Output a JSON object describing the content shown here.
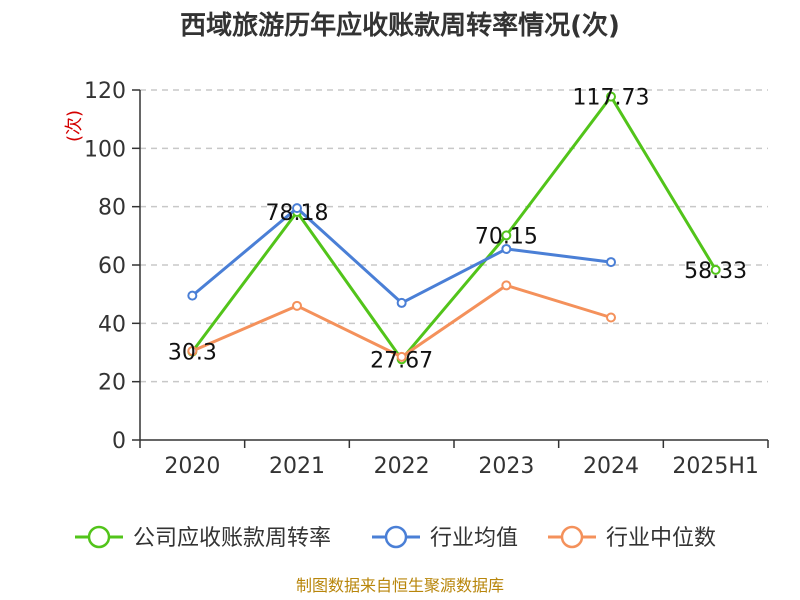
{
  "chart_data": {
    "type": "line",
    "title": "西域旅游历年应收账款周转率情况(次)",
    "ylabel": "(次)",
    "categories": [
      "2020",
      "2021",
      "2022",
      "2023",
      "2024",
      "2025H1"
    ],
    "yticks": [
      0,
      20,
      40,
      60,
      80,
      100,
      120
    ],
    "ylim": [
      0,
      120
    ],
    "grid": true,
    "legend_position": "bottom",
    "series": [
      {
        "name": "公司应收账款周转率",
        "color": "#52c41a",
        "values": [
          30.3,
          78.18,
          27.67,
          70.15,
          117.73,
          58.33
        ],
        "labels": [
          "30.3",
          "78.18",
          "27.67",
          "70.15",
          "117.73",
          "58.33"
        ]
      },
      {
        "name": "行业均值",
        "color": "#4a7fd6",
        "values": [
          49.5,
          79.5,
          47,
          65.5,
          61,
          null
        ]
      },
      {
        "name": "行业中位数",
        "color": "#f4915b",
        "values": [
          30.5,
          46,
          28.5,
          53,
          42,
          null
        ]
      }
    ]
  },
  "source": "制图数据来自恒生聚源数据库"
}
